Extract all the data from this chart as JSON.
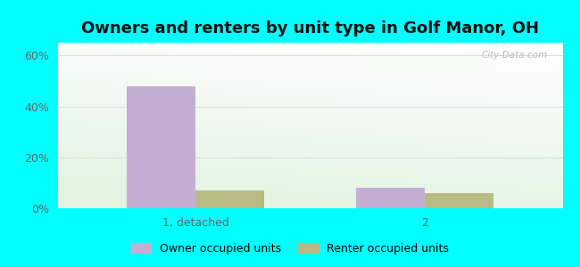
{
  "title": "Owners and renters by unit type in Golf Manor, OH",
  "categories": [
    "1, detached",
    "2"
  ],
  "owner_values": [
    48,
    8
  ],
  "renter_values": [
    7,
    6
  ],
  "owner_color": "#c4aed4",
  "renter_color": "#b8bc84",
  "yticks": [
    0,
    20,
    40,
    60
  ],
  "ytick_labels": [
    "0%",
    "20%",
    "40%",
    "60%"
  ],
  "ylim": [
    0,
    65
  ],
  "bar_width": 0.3,
  "outer_bg": "#00ffff",
  "legend_owner": "Owner occupied units",
  "legend_renter": "Renter occupied units",
  "watermark": "City-Data.com",
  "title_fontsize": 13,
  "tick_fontsize": 9,
  "grid_color": "#dddddd",
  "tick_color": "#666666"
}
